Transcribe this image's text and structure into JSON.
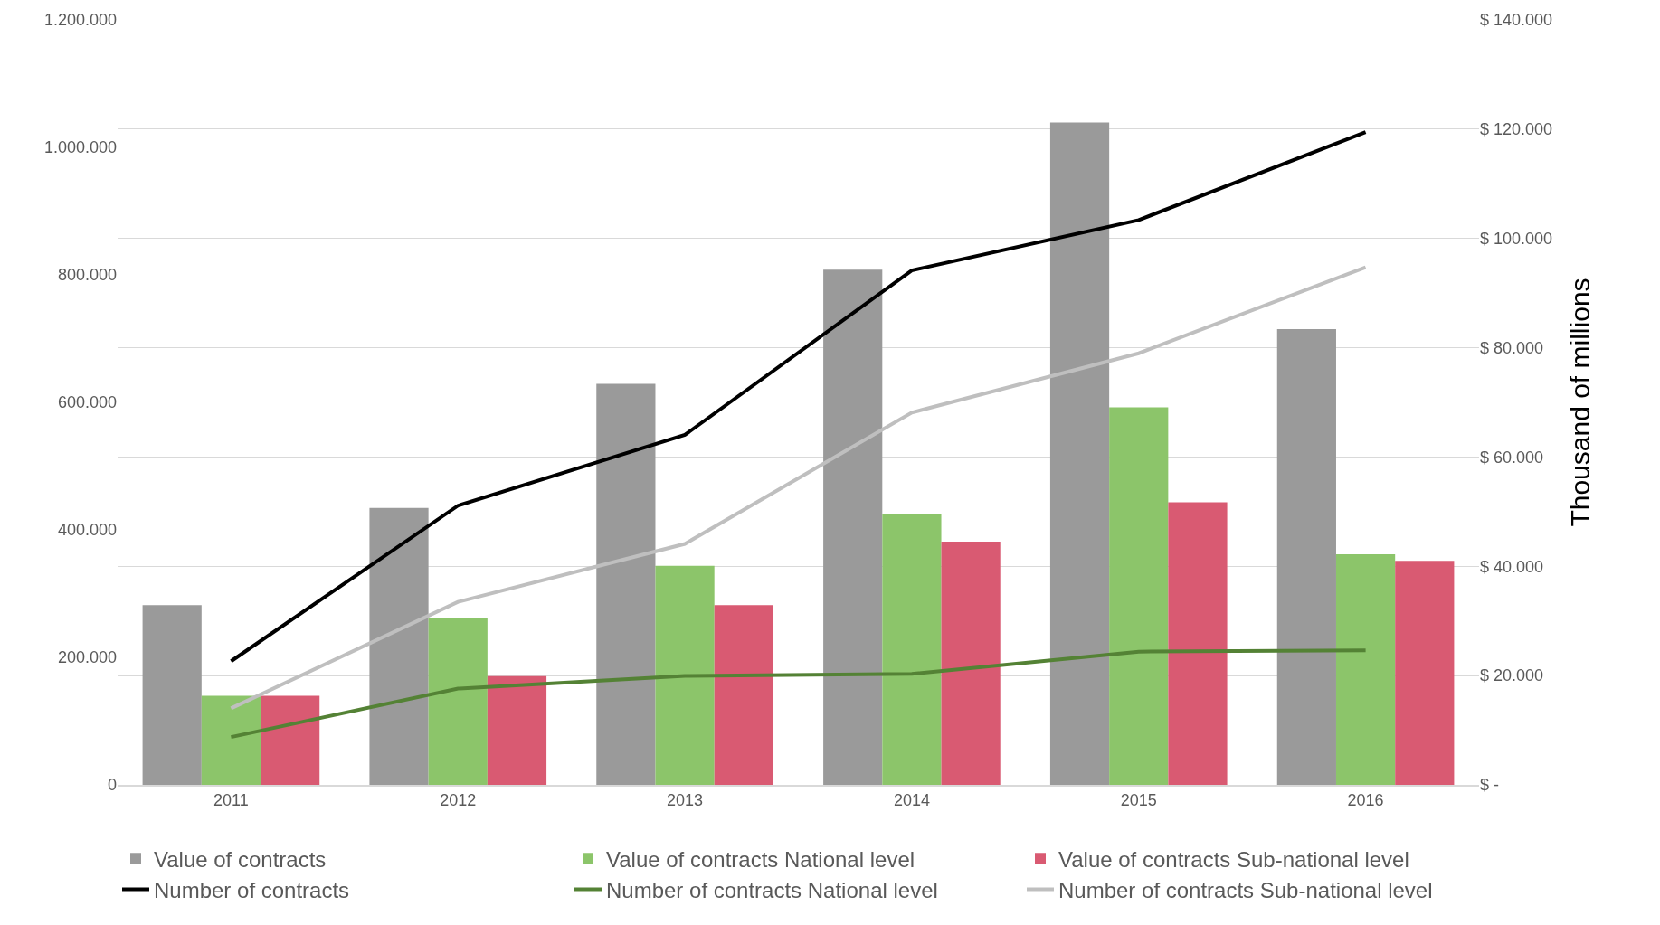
{
  "chart_data": {
    "type": "bar",
    "categories": [
      "2011",
      "2012",
      "2013",
      "2014",
      "2015",
      "2016"
    ],
    "y2label": "Thousand of millions",
    "ylim": [
      0,
      1200000
    ],
    "yticks": [
      {
        "value": 0,
        "label": "0"
      },
      {
        "value": 200000,
        "label": "200.000"
      },
      {
        "value": 400000,
        "label": "400.000"
      },
      {
        "value": 600000,
        "label": "600.000"
      },
      {
        "value": 800000,
        "label": "800.000"
      },
      {
        "value": 1000000,
        "label": "1.000.000"
      },
      {
        "value": 1200000,
        "label": "1.200.000"
      }
    ],
    "y2lim": [
      0,
      140000
    ],
    "y2ticks": [
      {
        "value": 0,
        "label": "$ -"
      },
      {
        "value": 20000,
        "label": "$ 20.000"
      },
      {
        "value": 40000,
        "label": "$ 40.000"
      },
      {
        "value": 60000,
        "label": "$ 60.000"
      },
      {
        "value": 80000,
        "label": "$ 80.000"
      },
      {
        "value": 100000,
        "label": "$ 100.000"
      },
      {
        "value": 120000,
        "label": "$ 120.000"
      },
      {
        "value": 140000,
        "label": "$ 140.000"
      }
    ],
    "grid": "y",
    "legend": "bottom",
    "series": [
      {
        "name": "Value of contracts",
        "axis": "y2",
        "color": "#9a9a9a",
        "values": [
          32900,
          50700,
          73400,
          94300,
          121200,
          83400
        ]
      },
      {
        "name": "Value of contracts National level",
        "axis": "y2",
        "color": "#8cc56a",
        "values": [
          16300,
          30600,
          40100,
          49600,
          69100,
          42200
        ]
      },
      {
        "name": "Value of contracts Sub-national level",
        "axis": "y2",
        "color": "#d95a72",
        "values": [
          16300,
          19900,
          32900,
          44500,
          51700,
          41000
        ]
      },
      {
        "name": "Number of contracts",
        "type": "line",
        "color": "#000000",
        "values": [
          194000,
          438000,
          549000,
          807000,
          886000,
          1024000
        ]
      },
      {
        "name": "Number of contracts National level",
        "type": "line",
        "color": "#548235",
        "values": [
          75000,
          151000,
          171000,
          174000,
          209000,
          211000
        ]
      },
      {
        "name": "Number of contracts Sub-national level",
        "type": "line",
        "color": "#bfbfbf",
        "values": [
          120000,
          287000,
          378000,
          584000,
          677000,
          812000
        ]
      }
    ]
  }
}
